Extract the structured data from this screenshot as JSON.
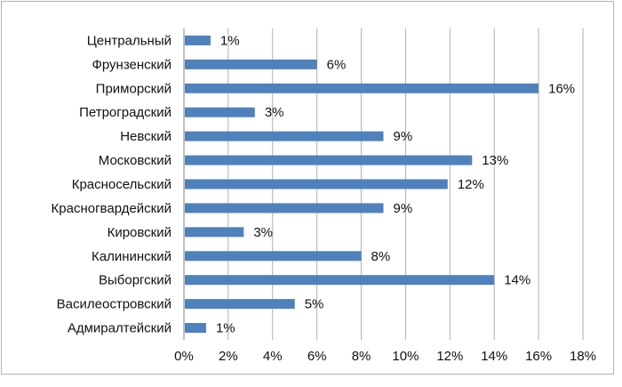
{
  "chart_data": {
    "type": "bar",
    "orientation": "horizontal",
    "categories": [
      "Центральный",
      "Фрунзенский",
      "Приморский",
      "Петроградский",
      "Невский",
      "Московский",
      "Красносельский",
      "Красногвардейский",
      "Кировский",
      "Калининский",
      "Выборгский",
      "Василеостровский",
      "Адмиралтейский"
    ],
    "values": [
      1.2,
      6,
      16,
      3.2,
      9,
      13,
      11.9,
      9,
      2.7,
      8,
      14,
      5,
      1
    ],
    "data_labels": [
      "1%",
      "6%",
      "16%",
      "3%",
      "9%",
      "13%",
      "12%",
      "9%",
      "3%",
      "8%",
      "14%",
      "5%",
      "1%"
    ],
    "xlim": [
      0,
      18
    ],
    "x_ticks": [
      0,
      2,
      4,
      6,
      8,
      10,
      12,
      14,
      16,
      18
    ],
    "x_tick_labels": [
      "0%",
      "2%",
      "4%",
      "6%",
      "8%",
      "10%",
      "12%",
      "14%",
      "16%",
      "18%"
    ],
    "grid": "vertical",
    "legend": "none",
    "bar_color": "#4f81bd",
    "gridline_color": "#b0b0b0"
  }
}
